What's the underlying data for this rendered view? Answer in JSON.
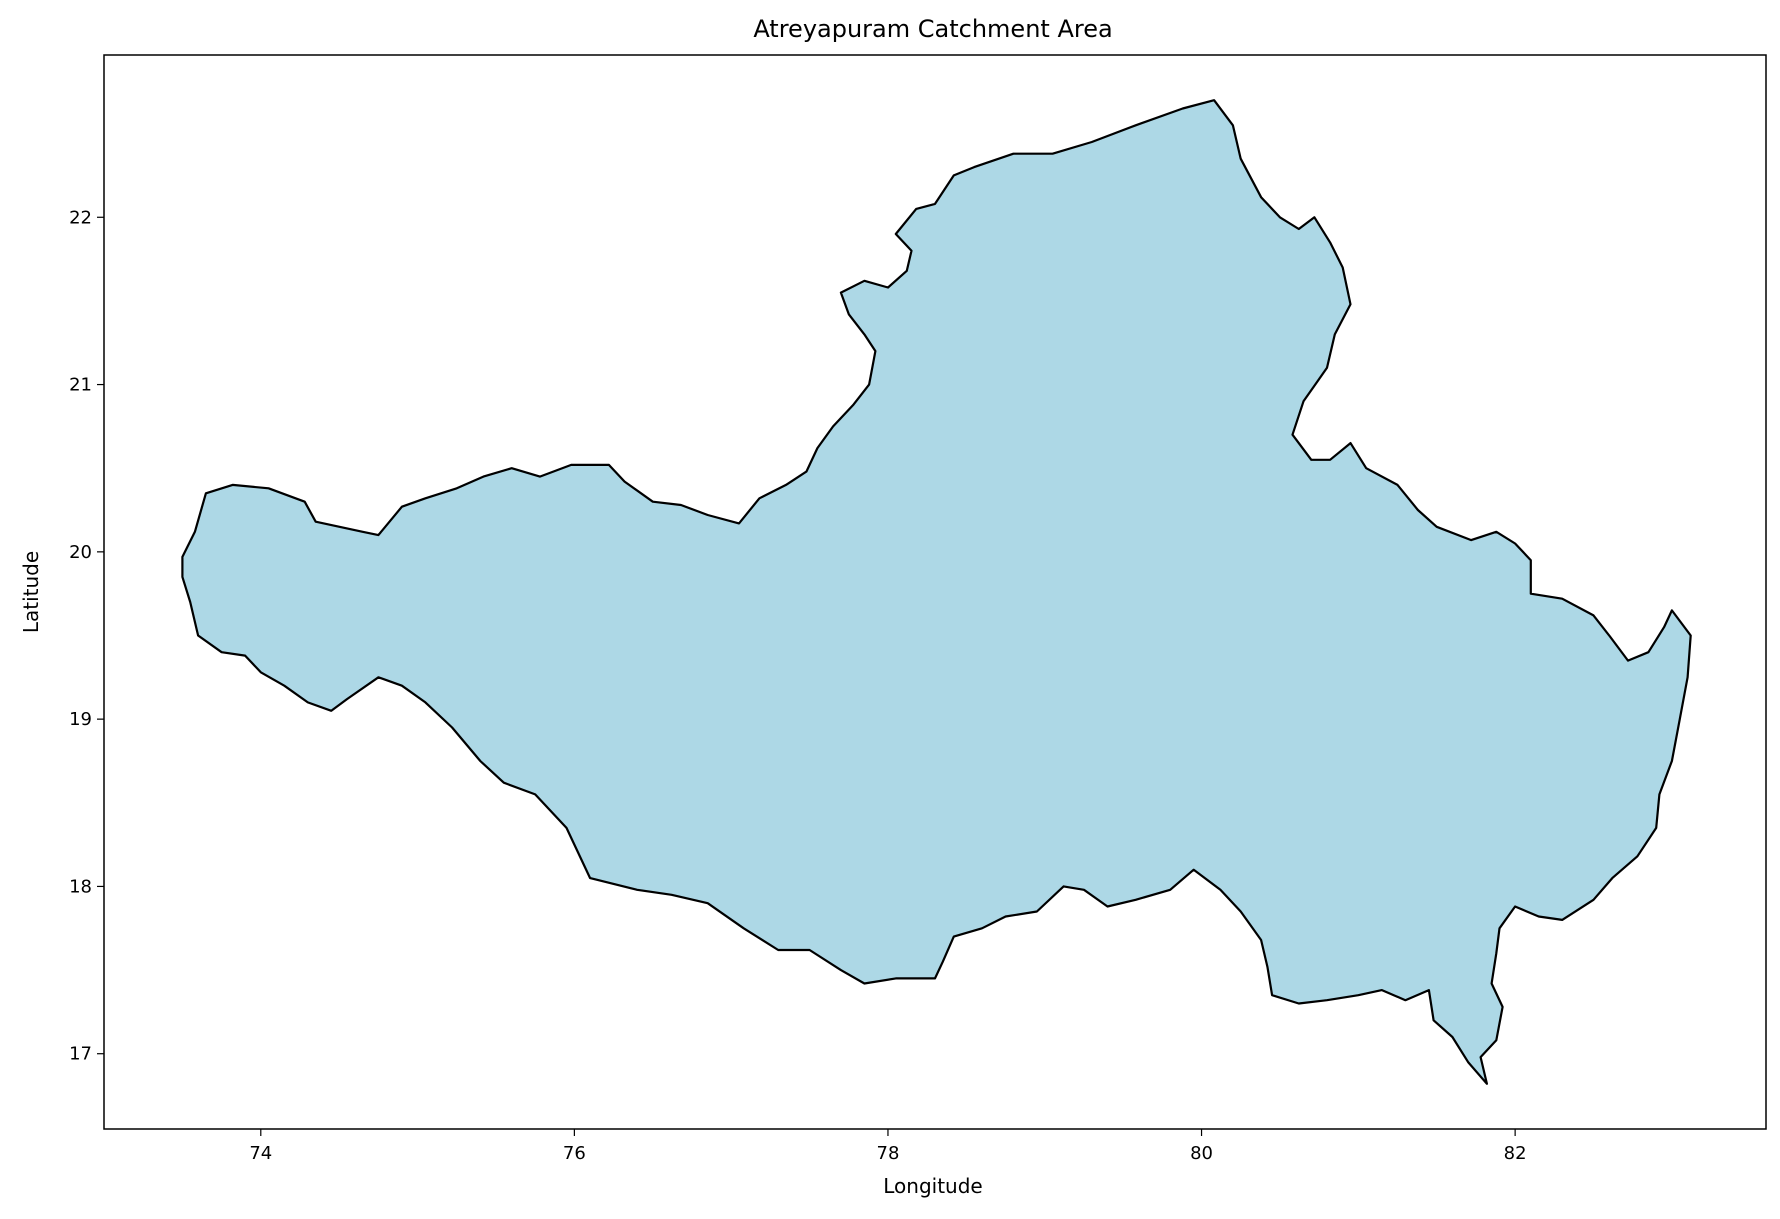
{
  "chart_data": {
    "type": "map",
    "title": "Atreyapuram Catchment Area",
    "xlabel": "Longitude",
    "ylabel": "Latitude",
    "xlim": [
      73.0,
      83.6
    ],
    "ylim": [
      16.55,
      22.97
    ],
    "xticks": [
      74,
      76,
      78,
      80,
      82
    ],
    "xtick_labels": [
      "74",
      "76",
      "78",
      "80",
      "82"
    ],
    "yticks": [
      17,
      18,
      19,
      20,
      21,
      22
    ],
    "ytick_labels": [
      "17",
      "18",
      "19",
      "20",
      "21",
      "22"
    ],
    "grid": false,
    "polygon_fill": "#add8e6",
    "polygon_edge": "#000000",
    "catchment_boundary": [
      [
        73.5,
        19.97
      ],
      [
        73.58,
        20.12
      ],
      [
        73.65,
        20.35
      ],
      [
        73.82,
        20.4
      ],
      [
        74.05,
        20.38
      ],
      [
        74.28,
        20.3
      ],
      [
        74.35,
        20.18
      ],
      [
        74.65,
        20.12
      ],
      [
        74.75,
        20.1
      ],
      [
        74.9,
        20.27
      ],
      [
        75.05,
        20.32
      ],
      [
        75.25,
        20.38
      ],
      [
        75.42,
        20.45
      ],
      [
        75.6,
        20.5
      ],
      [
        75.78,
        20.45
      ],
      [
        75.98,
        20.52
      ],
      [
        76.22,
        20.52
      ],
      [
        76.32,
        20.42
      ],
      [
        76.5,
        20.3
      ],
      [
        76.68,
        20.28
      ],
      [
        76.85,
        20.22
      ],
      [
        77.05,
        20.17
      ],
      [
        77.18,
        20.32
      ],
      [
        77.35,
        20.4
      ],
      [
        77.48,
        20.48
      ],
      [
        77.55,
        20.62
      ],
      [
        77.65,
        20.75
      ],
      [
        77.78,
        20.88
      ],
      [
        77.88,
        21.0
      ],
      [
        77.92,
        21.2
      ],
      [
        77.85,
        21.3
      ],
      [
        77.75,
        21.42
      ],
      [
        77.7,
        21.55
      ],
      [
        77.85,
        21.62
      ],
      [
        78.0,
        21.58
      ],
      [
        78.12,
        21.68
      ],
      [
        78.15,
        21.8
      ],
      [
        78.05,
        21.9
      ],
      [
        78.18,
        22.05
      ],
      [
        78.3,
        22.08
      ],
      [
        78.42,
        22.25
      ],
      [
        78.55,
        22.3
      ],
      [
        78.8,
        22.38
      ],
      [
        79.05,
        22.38
      ],
      [
        79.3,
        22.45
      ],
      [
        79.58,
        22.55
      ],
      [
        79.88,
        22.65
      ],
      [
        80.08,
        22.7
      ],
      [
        80.2,
        22.55
      ],
      [
        80.25,
        22.35
      ],
      [
        80.38,
        22.12
      ],
      [
        80.5,
        22.0
      ],
      [
        80.62,
        21.93
      ],
      [
        80.72,
        22.0
      ],
      [
        80.82,
        21.85
      ],
      [
        80.9,
        21.7
      ],
      [
        80.95,
        21.48
      ],
      [
        80.85,
        21.3
      ],
      [
        80.8,
        21.1
      ],
      [
        80.65,
        20.9
      ],
      [
        80.58,
        20.7
      ],
      [
        80.7,
        20.55
      ],
      [
        80.82,
        20.55
      ],
      [
        80.95,
        20.65
      ],
      [
        81.05,
        20.5
      ],
      [
        81.25,
        20.4
      ],
      [
        81.38,
        20.25
      ],
      [
        81.5,
        20.15
      ],
      [
        81.72,
        20.07
      ],
      [
        81.88,
        20.12
      ],
      [
        82.0,
        20.05
      ],
      [
        82.1,
        19.95
      ],
      [
        82.1,
        19.75
      ],
      [
        82.3,
        19.72
      ],
      [
        82.5,
        19.62
      ],
      [
        82.6,
        19.5
      ],
      [
        82.72,
        19.35
      ],
      [
        82.85,
        19.4
      ],
      [
        82.95,
        19.55
      ],
      [
        83.0,
        19.65
      ],
      [
        83.12,
        19.5
      ],
      [
        83.1,
        19.25
      ],
      [
        83.05,
        19.0
      ],
      [
        83.0,
        18.75
      ],
      [
        82.92,
        18.55
      ],
      [
        82.9,
        18.35
      ],
      [
        82.78,
        18.18
      ],
      [
        82.62,
        18.05
      ],
      [
        82.5,
        17.92
      ],
      [
        82.3,
        17.8
      ],
      [
        82.15,
        17.82
      ],
      [
        82.0,
        17.88
      ],
      [
        81.9,
        17.75
      ],
      [
        81.88,
        17.6
      ],
      [
        81.85,
        17.42
      ],
      [
        81.92,
        17.28
      ],
      [
        81.88,
        17.08
      ],
      [
        81.78,
        16.98
      ],
      [
        81.82,
        16.82
      ],
      [
        81.7,
        16.95
      ],
      [
        81.6,
        17.1
      ],
      [
        81.48,
        17.2
      ],
      [
        81.45,
        17.38
      ],
      [
        81.3,
        17.32
      ],
      [
        81.15,
        17.38
      ],
      [
        81.0,
        17.35
      ],
      [
        80.8,
        17.32
      ],
      [
        80.62,
        17.3
      ],
      [
        80.45,
        17.35
      ],
      [
        80.42,
        17.52
      ],
      [
        80.38,
        17.68
      ],
      [
        80.25,
        17.85
      ],
      [
        80.12,
        17.98
      ],
      [
        79.95,
        18.1
      ],
      [
        79.8,
        17.98
      ],
      [
        79.58,
        17.92
      ],
      [
        79.4,
        17.88
      ],
      [
        79.25,
        17.98
      ],
      [
        79.12,
        18.0
      ],
      [
        78.95,
        17.85
      ],
      [
        78.75,
        17.82
      ],
      [
        78.6,
        17.75
      ],
      [
        78.42,
        17.7
      ],
      [
        78.35,
        17.55
      ],
      [
        78.3,
        17.45
      ],
      [
        78.05,
        17.45
      ],
      [
        77.85,
        17.42
      ],
      [
        77.7,
        17.5
      ],
      [
        77.5,
        17.62
      ],
      [
        77.3,
        17.62
      ],
      [
        77.08,
        17.75
      ],
      [
        76.85,
        17.9
      ],
      [
        76.62,
        17.95
      ],
      [
        76.4,
        17.98
      ],
      [
        76.1,
        18.05
      ],
      [
        75.95,
        18.35
      ],
      [
        75.75,
        18.55
      ],
      [
        75.55,
        18.62
      ],
      [
        75.4,
        18.75
      ],
      [
        75.22,
        18.95
      ],
      [
        75.05,
        19.1
      ],
      [
        74.9,
        19.2
      ],
      [
        74.75,
        19.25
      ],
      [
        74.55,
        19.12
      ],
      [
        74.45,
        19.05
      ],
      [
        74.3,
        19.1
      ],
      [
        74.15,
        19.2
      ],
      [
        74.0,
        19.28
      ],
      [
        73.9,
        19.38
      ],
      [
        73.75,
        19.4
      ],
      [
        73.6,
        19.5
      ],
      [
        73.55,
        19.7
      ],
      [
        73.5,
        19.85
      ]
    ]
  }
}
